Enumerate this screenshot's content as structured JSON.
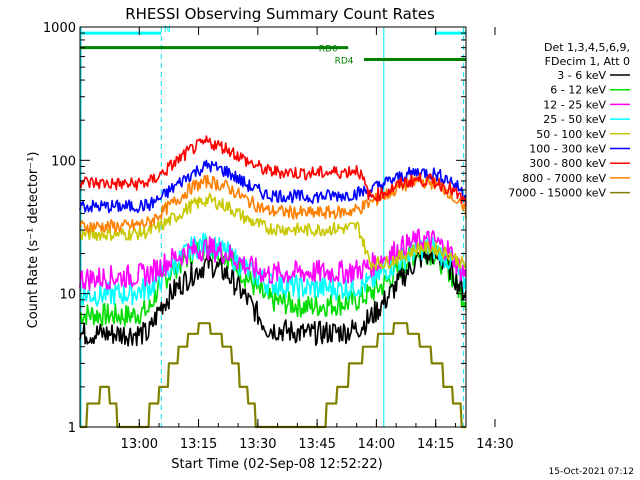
{
  "chart_data": {
    "type": "line",
    "title": "RHESSI Observing Summary Count Rates",
    "xlabel": "Start Time (02-Sep-08 12:52:22)",
    "ylabel": "Count Rate (s⁻¹ detector⁻¹)",
    "yscale": "log",
    "ylim": [
      1,
      1000
    ],
    "xlim_minutes": [
      -7.37,
      90.3
    ],
    "x_ticks": [
      "13:00",
      "13:15",
      "13:30",
      "13:45",
      "14:00",
      "14:15",
      "14:30"
    ],
    "y_ticks": [
      "1",
      "10",
      "100",
      "1000"
    ],
    "legend_header": [
      "Det 1,3,4,5,6,9,",
      "FDecim 1, Att 0"
    ],
    "series": [
      {
        "name": "3 - 6 keV",
        "color": "#000000",
        "points": [
          [
            -7.4,
            5
          ],
          [
            -5,
            5
          ],
          [
            5,
            5
          ],
          [
            10,
            5
          ],
          [
            13,
            8
          ],
          [
            17,
            11
          ],
          [
            21,
            14
          ],
          [
            25,
            17
          ],
          [
            30,
            14
          ],
          [
            35,
            9
          ],
          [
            40,
            5.5
          ],
          [
            50,
            5
          ],
          [
            60,
            5.2
          ],
          [
            63,
            5.5
          ],
          [
            66,
            6.5
          ],
          [
            70,
            9
          ],
          [
            74,
            13
          ],
          [
            78,
            18
          ],
          [
            82,
            20
          ],
          [
            86,
            16
          ],
          [
            89,
            11
          ],
          [
            90.3,
            10
          ]
        ]
      },
      {
        "name": "6 - 12 keV",
        "color": "#00dd00",
        "points": [
          [
            -7.4,
            7
          ],
          [
            -5,
            7
          ],
          [
            5,
            6.8
          ],
          [
            10,
            7.5
          ],
          [
            13,
            12
          ],
          [
            17,
            16
          ],
          [
            21,
            20
          ],
          [
            25,
            23
          ],
          [
            30,
            19
          ],
          [
            35,
            13
          ],
          [
            40,
            9
          ],
          [
            50,
            8
          ],
          [
            60,
            8.5
          ],
          [
            63,
            9
          ],
          [
            66,
            10
          ],
          [
            70,
            12
          ],
          [
            74,
            16
          ],
          [
            78,
            21
          ],
          [
            82,
            20
          ],
          [
            86,
            15
          ],
          [
            89,
            10
          ],
          [
            90.3,
            9
          ]
        ]
      },
      {
        "name": "12 - 25 keV",
        "color": "#ff00ff",
        "points": [
          [
            -7.4,
            13
          ],
          [
            -5,
            13
          ],
          [
            5,
            13.5
          ],
          [
            10,
            14
          ],
          [
            13,
            16
          ],
          [
            17,
            19
          ],
          [
            21,
            21
          ],
          [
            25,
            22
          ],
          [
            30,
            20
          ],
          [
            35,
            16
          ],
          [
            40,
            14
          ],
          [
            50,
            14.5
          ],
          [
            60,
            14.5
          ],
          [
            63,
            15
          ],
          [
            66,
            16
          ],
          [
            70,
            19
          ],
          [
            74,
            22
          ],
          [
            78,
            25
          ],
          [
            82,
            25
          ],
          [
            86,
            21
          ],
          [
            89,
            15
          ],
          [
            90.3,
            14
          ]
        ]
      },
      {
        "name": "25 - 50 keV",
        "color": "#00ffff",
        "points": [
          [
            -7.4,
            10
          ],
          [
            -5,
            9.8
          ],
          [
            5,
            10
          ],
          [
            10,
            11
          ],
          [
            13,
            13
          ],
          [
            17,
            17
          ],
          [
            21,
            22
          ],
          [
            25,
            24
          ],
          [
            30,
            20
          ],
          [
            35,
            15
          ],
          [
            40,
            12
          ],
          [
            50,
            11
          ],
          [
            60,
            11
          ],
          [
            63,
            11.5
          ],
          [
            66,
            12
          ],
          [
            70,
            15
          ],
          [
            74,
            18
          ],
          [
            78,
            22
          ],
          [
            82,
            22
          ],
          [
            86,
            18
          ],
          [
            89,
            13
          ],
          [
            90.3,
            12
          ]
        ]
      },
      {
        "name": "50 - 100 keV",
        "color": "#c8c800",
        "points": [
          [
            -7.4,
            28
          ],
          [
            -5,
            28
          ],
          [
            5,
            28
          ],
          [
            10,
            29
          ],
          [
            13,
            32
          ],
          [
            17,
            38
          ],
          [
            21,
            46
          ],
          [
            25,
            51
          ],
          [
            30,
            45
          ],
          [
            35,
            36
          ],
          [
            40,
            31
          ],
          [
            50,
            30
          ],
          [
            60,
            31
          ],
          [
            63,
            32
          ],
          [
            66,
            17
          ],
          [
            70,
            17
          ],
          [
            74,
            19
          ],
          [
            78,
            22
          ],
          [
            82,
            22
          ],
          [
            86,
            20
          ],
          [
            89,
            17
          ],
          [
            90.3,
            16
          ]
        ]
      },
      {
        "name": "100 - 300 keV",
        "color": "#0000ff",
        "points": [
          [
            -7.4,
            46
          ],
          [
            -5,
            45
          ],
          [
            5,
            45
          ],
          [
            10,
            46
          ],
          [
            13,
            52
          ],
          [
            17,
            65
          ],
          [
            21,
            80
          ],
          [
            25,
            92
          ],
          [
            30,
            82
          ],
          [
            35,
            65
          ],
          [
            40,
            55
          ],
          [
            50,
            53
          ],
          [
            60,
            55
          ],
          [
            63,
            57
          ],
          [
            66,
            60
          ],
          [
            70,
            68
          ],
          [
            74,
            76
          ],
          [
            78,
            82
          ],
          [
            82,
            80
          ],
          [
            86,
            72
          ],
          [
            89,
            60
          ],
          [
            90.3,
            52
          ]
        ]
      },
      {
        "name": "300 - 800 keV",
        "color": "#ff0000",
        "points": [
          [
            -7.4,
            70
          ],
          [
            -5,
            68
          ],
          [
            5,
            66
          ],
          [
            10,
            68
          ],
          [
            13,
            78
          ],
          [
            17,
            98
          ],
          [
            21,
            122
          ],
          [
            25,
            138
          ],
          [
            30,
            122
          ],
          [
            35,
            98
          ],
          [
            40,
            83
          ],
          [
            50,
            80
          ],
          [
            60,
            82
          ],
          [
            63,
            86
          ],
          [
            66,
            53
          ],
          [
            70,
            58
          ],
          [
            74,
            67
          ],
          [
            78,
            72
          ],
          [
            82,
            70
          ],
          [
            86,
            62
          ],
          [
            89,
            52
          ],
          [
            90.3,
            47
          ]
        ]
      },
      {
        "name": "800 - 7000 keV",
        "color": "#ff8000",
        "points": [
          [
            -7.4,
            32
          ],
          [
            -5,
            32
          ],
          [
            5,
            32
          ],
          [
            10,
            34
          ],
          [
            13,
            40
          ],
          [
            17,
            50
          ],
          [
            21,
            63
          ],
          [
            25,
            70
          ],
          [
            30,
            63
          ],
          [
            35,
            50
          ],
          [
            40,
            42
          ],
          [
            50,
            40
          ],
          [
            60,
            41
          ],
          [
            63,
            43
          ],
          [
            66,
            48
          ],
          [
            70,
            55
          ],
          [
            74,
            64
          ],
          [
            78,
            70
          ],
          [
            82,
            68
          ],
          [
            86,
            58
          ],
          [
            89,
            45
          ],
          [
            90.3,
            40
          ]
        ]
      },
      {
        "name": "7000 - 15000 keV",
        "color": "#808000",
        "points": [
          [
            -7.4,
            1
          ],
          [
            -4,
            1.5
          ],
          [
            -1,
            2
          ],
          [
            1,
            1.5
          ],
          [
            3,
            1
          ],
          [
            9,
            1
          ],
          [
            11,
            1.5
          ],
          [
            14,
            2
          ],
          [
            16,
            3
          ],
          [
            19,
            4
          ],
          [
            21,
            5
          ],
          [
            24,
            6
          ],
          [
            27,
            5
          ],
          [
            30,
            4
          ],
          [
            32,
            3
          ],
          [
            34,
            2
          ],
          [
            36,
            1.5
          ],
          [
            38,
            1
          ],
          [
            54,
            1
          ],
          [
            56,
            1.5
          ],
          [
            59,
            2
          ],
          [
            62,
            3
          ],
          [
            66,
            4
          ],
          [
            70,
            5
          ],
          [
            74,
            6
          ],
          [
            77,
            5
          ],
          [
            80,
            4
          ],
          [
            83,
            3
          ],
          [
            86,
            2
          ],
          [
            88,
            1.5
          ],
          [
            90.3,
            1
          ]
        ]
      }
    ],
    "annotations": [
      {
        "label": "N",
        "from_min": -7.4,
        "to_min": 13.2,
        "level": 900,
        "color": "#00ffff"
      },
      {
        "label": "N",
        "from_min": 82.4,
        "to_min": 90.3,
        "level": 900,
        "color": "#00ffff"
      },
      {
        "label": "RD0",
        "from_min": -7.4,
        "to_min": 60.5,
        "level": 700,
        "color": "#007f00"
      },
      {
        "label": "RD4",
        "from_min": 64.5,
        "to_min": 90.3,
        "level": 570,
        "color": "#007f00"
      }
    ],
    "vlines_min": [
      {
        "t": 13.2,
        "style": "dashed"
      },
      {
        "t": 69.5,
        "style": "solid"
      },
      {
        "t": 89.7,
        "style": "dashed"
      }
    ],
    "footer": "15-Oct-2021 07:12",
    "grid": false,
    "legend_position": "right"
  }
}
